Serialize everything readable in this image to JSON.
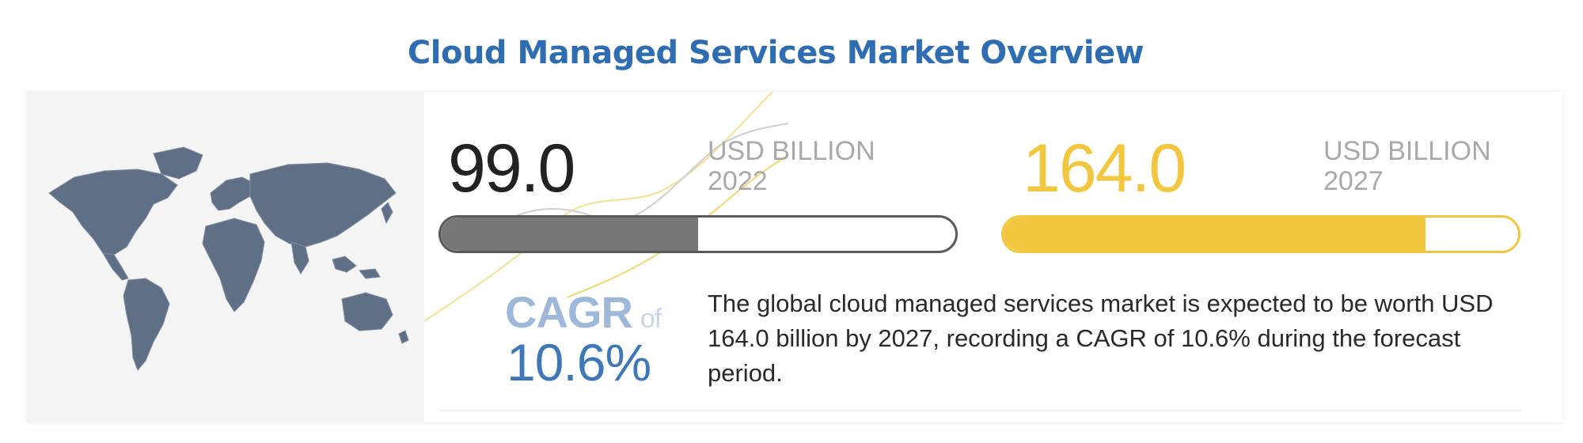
{
  "title": "Cloud Managed Services Market Overview",
  "market_2022": {
    "value": "99.0",
    "unit": "USD BILLION",
    "year": "2022",
    "bar_fill_fraction": 0.5
  },
  "market_2027": {
    "value": "164.0",
    "unit": "USD BILLION",
    "year": "2027",
    "bar_fill_fraction": 0.82
  },
  "cagr": {
    "label": "CAGR",
    "of": "of",
    "value": "10.6%"
  },
  "description": "The global cloud managed services market is expected to be worth USD 164.0 billion by 2027, recording a CAGR of 10.6% during the forecast period.",
  "colors": {
    "title": "#2f6db3",
    "accent_yellow": "#f3c63f",
    "bar_gray": "#777777",
    "cagr_blue": "#3f78b8",
    "map": "#5f6f86"
  },
  "icons": {
    "map": "world-map-icon"
  }
}
